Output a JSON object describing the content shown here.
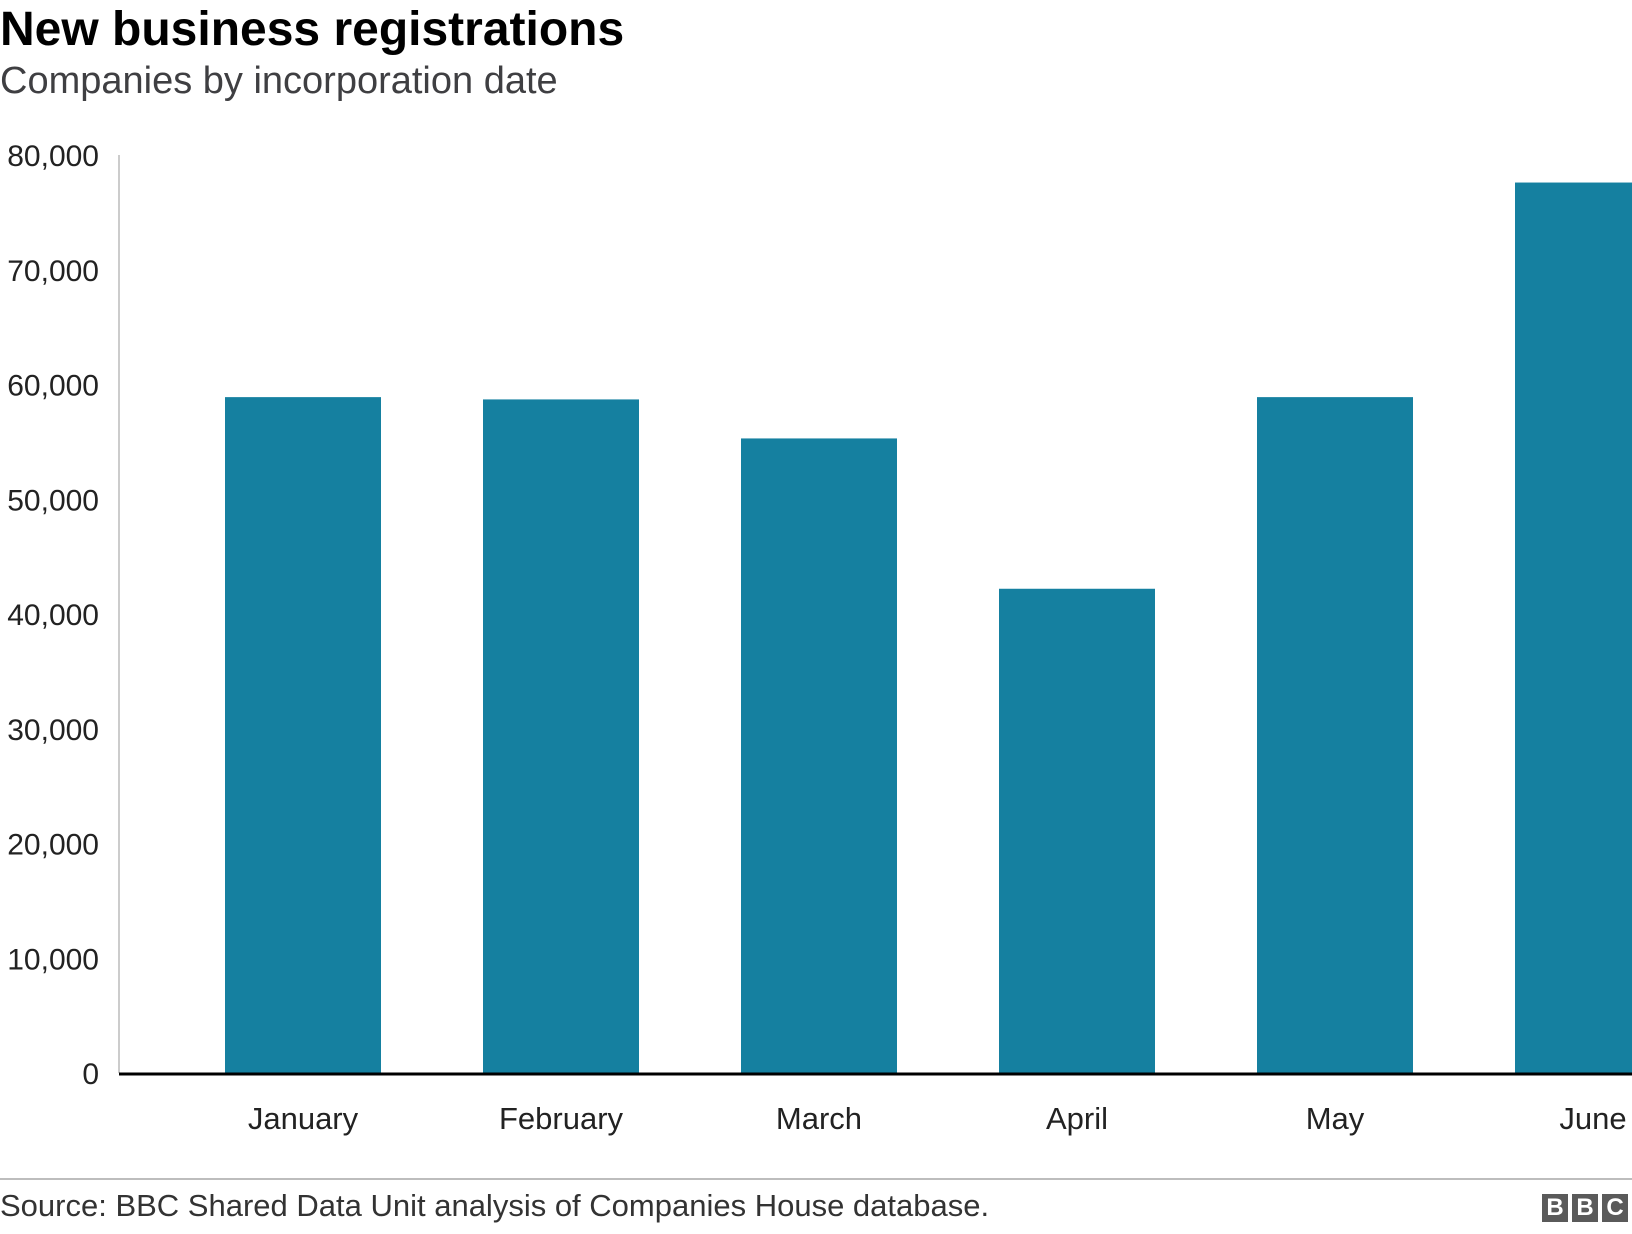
{
  "chart_data": {
    "type": "bar",
    "title": "New business registrations",
    "subtitle": "Companies by incorporation date",
    "xlabel": "",
    "ylabel": "",
    "categories": [
      "January",
      "February",
      "March",
      "April",
      "May",
      "June"
    ],
    "values": [
      58900,
      58700,
      55300,
      42200,
      58900,
      77600
    ],
    "ylim": [
      0,
      80000
    ],
    "yticks": [
      0,
      10000,
      20000,
      30000,
      40000,
      50000,
      60000,
      70000,
      80000
    ],
    "ytick_labels": [
      "0",
      "10,000",
      "20,000",
      "30,000",
      "40,000",
      "50,000",
      "60,000",
      "70,000",
      "80,000"
    ],
    "grid": false,
    "bar_color": "#1580a0"
  },
  "footer": {
    "source": "Source: BBC Shared Data Unit analysis of Companies House database.",
    "logo_letters": [
      "B",
      "B",
      "C"
    ]
  }
}
